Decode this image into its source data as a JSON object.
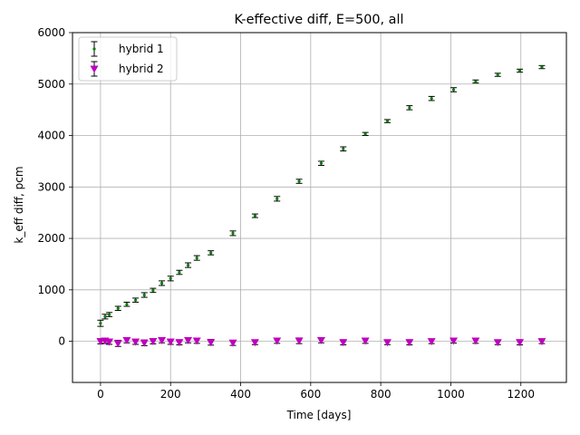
{
  "chart_data": {
    "type": "scatter",
    "title": "K-effective diff, E=500, all",
    "xlabel": "Time [days]",
    "ylabel": "k_eff diff, pcm",
    "xlim": [
      -80,
      1330
    ],
    "ylim": [
      -800,
      6000
    ],
    "xticks": [
      0,
      200,
      400,
      600,
      800,
      1000,
      1200
    ],
    "yticks": [
      0,
      1000,
      2000,
      3000,
      4000,
      5000,
      6000
    ],
    "xtick_labels": [
      "0",
      "200",
      "400",
      "600",
      "800",
      "1000",
      "1200"
    ],
    "ytick_labels": [
      "0",
      "1000",
      "2000",
      "3000",
      "4000",
      "5000",
      "6000"
    ],
    "grid": true,
    "legend_position": "top-left",
    "errorbar_color": "#000000",
    "series": [
      {
        "name": "hybrid 1",
        "marker": "point",
        "color": "#008000",
        "x": [
          0,
          13,
          25,
          50,
          75,
          100,
          125,
          150,
          175,
          200,
          225,
          250,
          275,
          315,
          378,
          441,
          504,
          567,
          630,
          693,
          756,
          819,
          882,
          945,
          1008,
          1071,
          1134,
          1197,
          1260
        ],
        "y": [
          350,
          480,
          520,
          640,
          720,
          800,
          900,
          990,
          1130,
          1220,
          1340,
          1480,
          1620,
          1720,
          2100,
          2440,
          2770,
          3110,
          3460,
          3740,
          4030,
          4280,
          4540,
          4720,
          4890,
          5050,
          5180,
          5260,
          5330
        ],
        "err": [
          60,
          45,
          40,
          40,
          40,
          40,
          45,
          40,
          45,
          45,
          40,
          45,
          45,
          40,
          45,
          35,
          45,
          40,
          40,
          40,
          30,
          30,
          40,
          40,
          40,
          30,
          30,
          30,
          30
        ]
      },
      {
        "name": "hybrid 2",
        "marker": "triangle-down",
        "color": "#c000c0",
        "x": [
          0,
          13,
          25,
          50,
          75,
          100,
          125,
          150,
          175,
          200,
          225,
          250,
          275,
          315,
          378,
          441,
          504,
          567,
          630,
          693,
          756,
          819,
          882,
          945,
          1008,
          1071,
          1134,
          1197,
          1260
        ],
        "y": [
          0,
          10,
          -10,
          -40,
          20,
          -10,
          -30,
          0,
          20,
          -10,
          -20,
          20,
          10,
          -20,
          -30,
          -20,
          10,
          10,
          20,
          -20,
          10,
          -20,
          -20,
          0,
          10,
          10,
          -20,
          -20,
          0
        ],
        "err": [
          50,
          50,
          50,
          60,
          50,
          50,
          55,
          50,
          50,
          50,
          50,
          50,
          50,
          55,
          50,
          45,
          50,
          55,
          50,
          50,
          50,
          45,
          50,
          45,
          45,
          50,
          45,
          50,
          45
        ]
      }
    ]
  }
}
